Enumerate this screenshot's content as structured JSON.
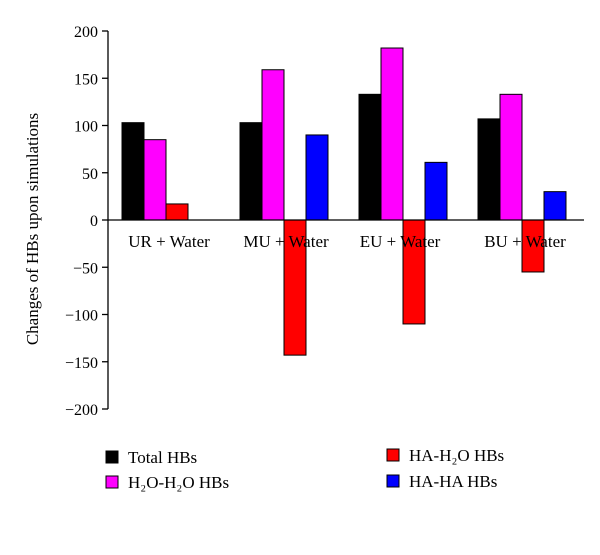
{
  "chart_data": {
    "type": "bar",
    "title": "",
    "xlabel": "",
    "ylabel": "Changes of HBs upon simulations",
    "ylim": [
      -200,
      200
    ],
    "yticks": [
      200,
      150,
      100,
      50,
      0,
      -50,
      -100,
      -150,
      -200
    ],
    "ytick_labels": [
      "200",
      "150",
      "100",
      "50",
      "0",
      "−50",
      "−100",
      "−150",
      "−200"
    ],
    "categories": [
      "UR + Water",
      "MU + Water",
      "EU + Water",
      "BU + Water"
    ],
    "series": [
      {
        "name": "Total HBs",
        "color": "#000000",
        "values": [
          103,
          103,
          133,
          107
        ]
      },
      {
        "name": "H₂O-H₂O HBs",
        "color": "#ff00ff",
        "values": [
          85,
          159,
          182,
          133
        ]
      },
      {
        "name": "HA-H₂O HBs",
        "color": "#ff0000",
        "values": [
          17,
          -143,
          -110,
          -55
        ]
      },
      {
        "name": "HA-HA HBs",
        "color": "#0000ff",
        "values": [
          0,
          90,
          61,
          30
        ]
      }
    ],
    "legend_position": "bottom",
    "grid": false
  }
}
